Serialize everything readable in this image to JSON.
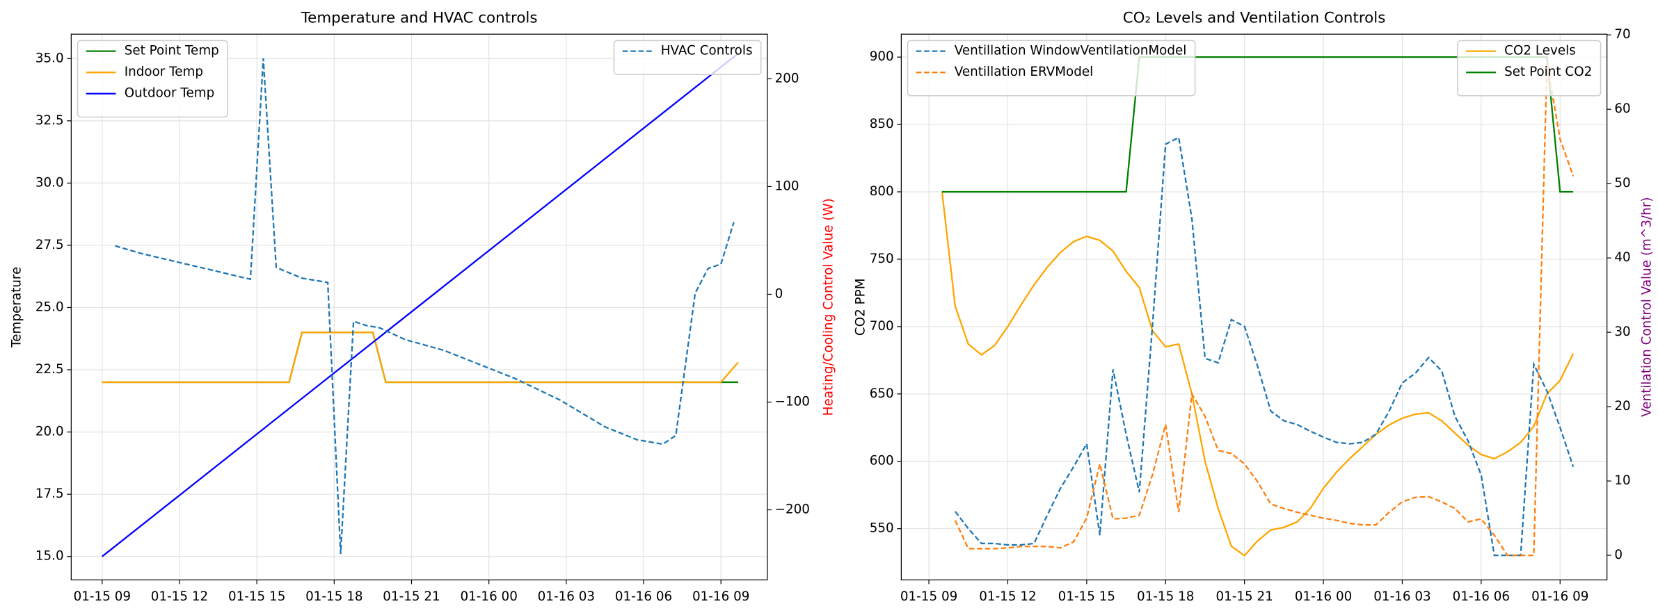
{
  "chart_data": [
    {
      "type": "line",
      "title": "Temperature and HVAC controls",
      "ylabel": "Temperature",
      "y2label": "Heating/Cooling Control Value (W)",
      "y2label_color": "#ff0000",
      "x": [
        "01-15 09:00",
        "01-15 16:15",
        "01-15 16:45",
        "01-15 19:30",
        "01-15 20:00",
        "01-16 09:00",
        "01-16 09:40"
      ],
      "xlim": [
        "01-15 07:48",
        "01-16 10:48"
      ],
      "xticks": [
        {
          "value": "01-15 09:00",
          "label": "01-15 09"
        },
        {
          "value": "01-15 12:00",
          "label": "01-15 12"
        },
        {
          "value": "01-15 15:00",
          "label": "01-15 15"
        },
        {
          "value": "01-15 18:00",
          "label": "01-15 18"
        },
        {
          "value": "01-15 21:00",
          "label": "01-15 21"
        },
        {
          "value": "01-16 00:00",
          "label": "01-16 00"
        },
        {
          "value": "01-16 03:00",
          "label": "01-16 03"
        },
        {
          "value": "01-16 06:00",
          "label": "01-16 06"
        },
        {
          "value": "01-16 09:00",
          "label": "01-16 09"
        }
      ],
      "ylim": [
        14.06,
        35.98
      ],
      "yticks": [
        {
          "value": 15,
          "label": "15.0"
        },
        17.5,
        {
          "value": 20,
          "label": "20.0"
        },
        22.5,
        {
          "value": 25,
          "label": "25.0"
        },
        27.5,
        {
          "value": 30,
          "label": "30.0"
        },
        32.5,
        {
          "value": 35,
          "label": "35.0"
        }
      ],
      "y2lim": [
        -265.0,
        241.4
      ],
      "y2ticks": [
        {
          "value": -200,
          "label": "−200"
        },
        {
          "value": -100,
          "label": "−100"
        },
        0,
        100,
        200
      ],
      "grid": true,
      "legend_loc": "upper left",
      "legend2_loc": "upper right",
      "series": [
        {
          "name": "Set Point Temp",
          "color": "#008000",
          "linestyle": "solid",
          "axis": "y",
          "values": [
            22,
            22,
            24,
            24,
            22,
            22,
            22
          ]
        },
        {
          "name": "Indoor Temp",
          "color": "#ffa500",
          "linestyle": "solid",
          "axis": "y",
          "values": [
            22,
            22,
            24,
            24,
            22,
            22,
            22.8
          ]
        },
        {
          "name": "Outdoor Temp",
          "color": "#0000ff",
          "linestyle": "solid",
          "axis": "y",
          "values": [
            15,
            20.94,
            21.35,
            23.6,
            24.01,
            34.66,
            35.2
          ]
        },
        {
          "name": "HVAC Controls",
          "color": "#1f77b4",
          "linestyle": "dashed",
          "axis": "y2",
          "x": [
            "01-15 09:30",
            "01-15 10:30",
            "01-15 14:45",
            "01-15 15:15",
            "01-15 15:45",
            "01-15 16:45",
            "01-15 17:45",
            "01-15 18:15",
            "01-15 18:45",
            "01-15 19:15",
            "01-15 19:45",
            "01-15 20:45",
            "01-15 22:15",
            "01-16 01:00",
            "01-16 02:45",
            "01-16 04:30",
            "01-16 05:45",
            "01-16 06:45",
            "01-16 07:15",
            "01-16 08:00",
            "01-16 08:30",
            "01-16 09:00",
            "01-16 09:30"
          ],
          "values": [
            45,
            38,
            14,
            219,
            25,
            15,
            11,
            -241,
            -25,
            -29,
            -31,
            -42,
            -52,
            -78,
            -98,
            -123,
            -135,
            -139,
            -131,
            1,
            24,
            28,
            67
          ]
        }
      ]
    },
    {
      "type": "line",
      "title": "CO₂ Levels and Ventilation Controls",
      "ylabel": "CO2 PPM",
      "y2label": "Ventilation Control Value (m^3/hr)",
      "y2label_color": "#800080",
      "x": [
        "01-15 09:30",
        "01-15 10:00",
        "01-15 10:30",
        "01-15 11:00",
        "01-15 11:30",
        "01-15 12:00",
        "01-15 12:30",
        "01-15 13:00",
        "01-15 13:30",
        "01-15 14:00",
        "01-15 14:30",
        "01-15 15:00",
        "01-15 15:30",
        "01-15 16:00",
        "01-15 16:30",
        "01-15 17:00",
        "01-15 17:30",
        "01-15 18:00",
        "01-15 18:30",
        "01-15 19:00",
        "01-15 19:30",
        "01-15 20:00",
        "01-15 20:30",
        "01-15 21:00",
        "01-15 21:30",
        "01-15 22:00",
        "01-15 22:30",
        "01-15 23:00",
        "01-15 23:30",
        "01-16 00:00",
        "01-16 00:30",
        "01-16 01:00",
        "01-16 01:30",
        "01-16 02:00",
        "01-16 02:30",
        "01-16 03:00",
        "01-16 03:30",
        "01-16 04:00",
        "01-16 04:30",
        "01-16 05:00",
        "01-16 05:30",
        "01-16 06:00",
        "01-16 06:30",
        "01-16 07:00",
        "01-16 07:30",
        "01-16 08:00",
        "01-16 08:30",
        "01-16 09:00",
        "01-16 09:30"
      ],
      "xlim": [
        "01-15 07:57",
        "01-16 10:47"
      ],
      "xticks": [
        {
          "value": "01-15 09:00",
          "label": "01-15 09"
        },
        {
          "value": "01-15 12:00",
          "label": "01-15 12"
        },
        {
          "value": "01-15 15:00",
          "label": "01-15 15"
        },
        {
          "value": "01-15 18:00",
          "label": "01-15 18"
        },
        {
          "value": "01-15 21:00",
          "label": "01-15 21"
        },
        {
          "value": "01-16 00:00",
          "label": "01-16 00"
        },
        {
          "value": "01-16 03:00",
          "label": "01-16 03"
        },
        {
          "value": "01-16 06:00",
          "label": "01-16 06"
        },
        {
          "value": "01-16 09:00",
          "label": "01-16 09"
        }
      ],
      "ylim": [
        512,
        917
      ],
      "yticks": [
        550,
        600,
        650,
        700,
        750,
        800,
        850,
        900
      ],
      "y2lim": [
        -3.3,
        70.1
      ],
      "y2ticks": [
        0,
        10,
        20,
        30,
        40,
        50,
        60,
        70
      ],
      "grid": true,
      "legend_loc": "upper right",
      "legend2_loc": "upper left",
      "series": [
        {
          "name": "CO2 Levels",
          "color": "#ffa500",
          "linestyle": "solid",
          "axis": "y",
          "values": [
            800,
            715,
            687,
            679,
            686,
            700,
            716,
            731,
            744,
            755,
            763,
            767,
            764,
            756,
            741,
            729,
            697,
            685,
            687,
            650,
            600,
            565,
            537,
            530,
            541,
            549,
            551,
            555,
            565,
            580,
            592,
            602,
            611,
            620,
            627,
            632,
            635,
            636,
            630,
            621,
            612,
            605,
            602,
            607,
            614,
            626,
            650,
            660,
            680
          ]
        },
        {
          "name": "Set Point CO2",
          "color": "#008000",
          "linestyle": "solid",
          "axis": "y",
          "values": [
            800,
            800,
            800,
            800,
            800,
            800,
            800,
            800,
            800,
            800,
            800,
            800,
            800,
            800,
            800,
            900,
            900,
            900,
            900,
            900,
            900,
            900,
            900,
            900,
            900,
            900,
            900,
            900,
            900,
            900,
            900,
            900,
            900,
            900,
            900,
            900,
            900,
            900,
            900,
            900,
            900,
            900,
            900,
            900,
            900,
            900,
            900,
            800,
            800
          ]
        },
        {
          "name": "Ventillation WindowVentilationModel",
          "color": "#1f77b4",
          "linestyle": "dashed",
          "axis": "y2",
          "values": [
            null,
            5.9,
            3.6,
            1.6,
            1.6,
            1.4,
            1.4,
            1.6,
            5.4,
            9.0,
            11.9,
            15.0,
            2.7,
            25.0,
            16.3,
            8.5,
            30.8,
            55.3,
            56.2,
            45.3,
            26.5,
            25.9,
            31.7,
            30.8,
            25.4,
            19.4,
            18.1,
            17.6,
            16.7,
            15.9,
            15.2,
            15.0,
            15.2,
            16.3,
            19.4,
            23.2,
            24.5,
            26.6,
            24.8,
            18.7,
            15.4,
            10.8,
            0,
            0,
            0,
            25.7,
            22.1,
            17.2,
            11.9
          ]
        },
        {
          "name": "Ventillation ERVModel",
          "color": "#ff7f0e",
          "linestyle": "dashed",
          "axis": "y2",
          "values": [
            null,
            4.7,
            0.9,
            0.9,
            0.9,
            1.0,
            1.2,
            1.2,
            1.2,
            1.0,
            1.8,
            5.0,
            12.3,
            4.9,
            5.0,
            5.4,
            10.8,
            17.6,
            5.8,
            21.7,
            18.7,
            14.1,
            13.7,
            12.3,
            9.9,
            6.9,
            6.3,
            5.8,
            5.4,
            5.0,
            4.7,
            4.3,
            4.1,
            4.1,
            5.8,
            7.2,
            7.8,
            7.9,
            7.2,
            6.3,
            4.5,
            4.9,
            2.7,
            0,
            0,
            0,
            66.2,
            56,
            51
          ]
        }
      ]
    }
  ]
}
